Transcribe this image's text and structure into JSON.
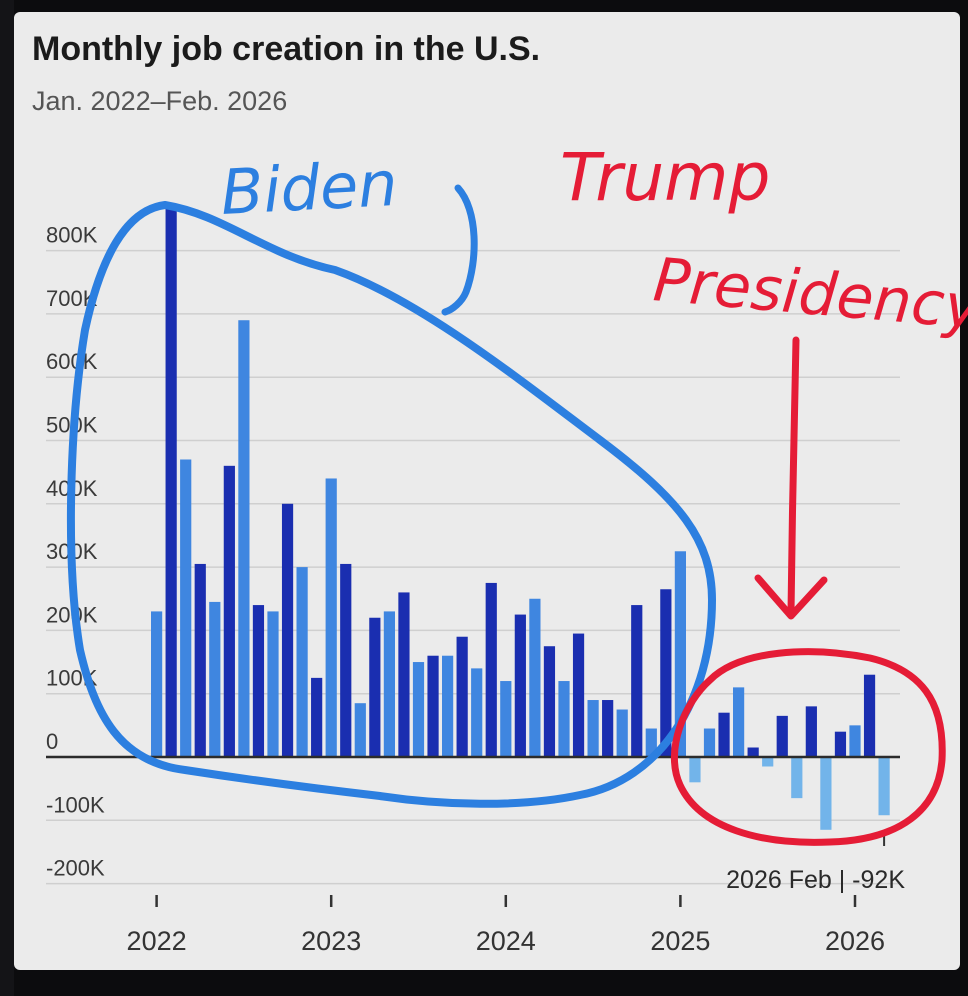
{
  "title": "Monthly job creation in the U.S.",
  "subtitle": "Jan. 2022–Feb. 2026",
  "colors": {
    "background": "#ebebeb",
    "bar_dark": "#1a2eb0",
    "bar_light": "#3f86e0",
    "bar_negative": "#72b4ea",
    "grid": "#cfcfcf",
    "zero_line": "#2b2b2b",
    "biden_annotation": "#2c7fe0",
    "trump_annotation": "#e51c36"
  },
  "annotations": {
    "biden": "Biden",
    "trump_line1": "Trump",
    "trump_line2": "Presidency"
  },
  "chart_data": {
    "type": "bar",
    "title": "Monthly job creation in the U.S.",
    "subtitle": "Jan. 2022–Feb. 2026",
    "xlabel": "",
    "ylabel": "",
    "ylim": [
      -200000,
      900000
    ],
    "yticks": [
      -200000,
      -100000,
      0,
      100000,
      200000,
      300000,
      400000,
      500000,
      600000,
      700000,
      800000
    ],
    "ytick_labels": [
      "-200K",
      "-100K",
      "0",
      "100K",
      "200K",
      "300K",
      "400K",
      "500K",
      "600K",
      "700K",
      "800K"
    ],
    "xtick_labels": [
      "2022",
      "2023",
      "2024",
      "2025",
      "2026"
    ],
    "grid": true,
    "callout": "2026 Feb | -92K",
    "values": [
      230000,
      870000,
      470000,
      305000,
      245000,
      460000,
      690000,
      240000,
      230000,
      400000,
      300000,
      125000,
      440000,
      305000,
      85000,
      220000,
      230000,
      260000,
      150000,
      160000,
      160000,
      190000,
      140000,
      275000,
      120000,
      225000,
      250000,
      175000,
      120000,
      195000,
      90000,
      90000,
      75000,
      240000,
      45000,
      265000,
      325000,
      -40000,
      45000,
      70000,
      110000,
      15000,
      -15000,
      65000,
      -65000,
      80000,
      -115000,
      40000,
      50000,
      130000,
      -92000
    ]
  }
}
